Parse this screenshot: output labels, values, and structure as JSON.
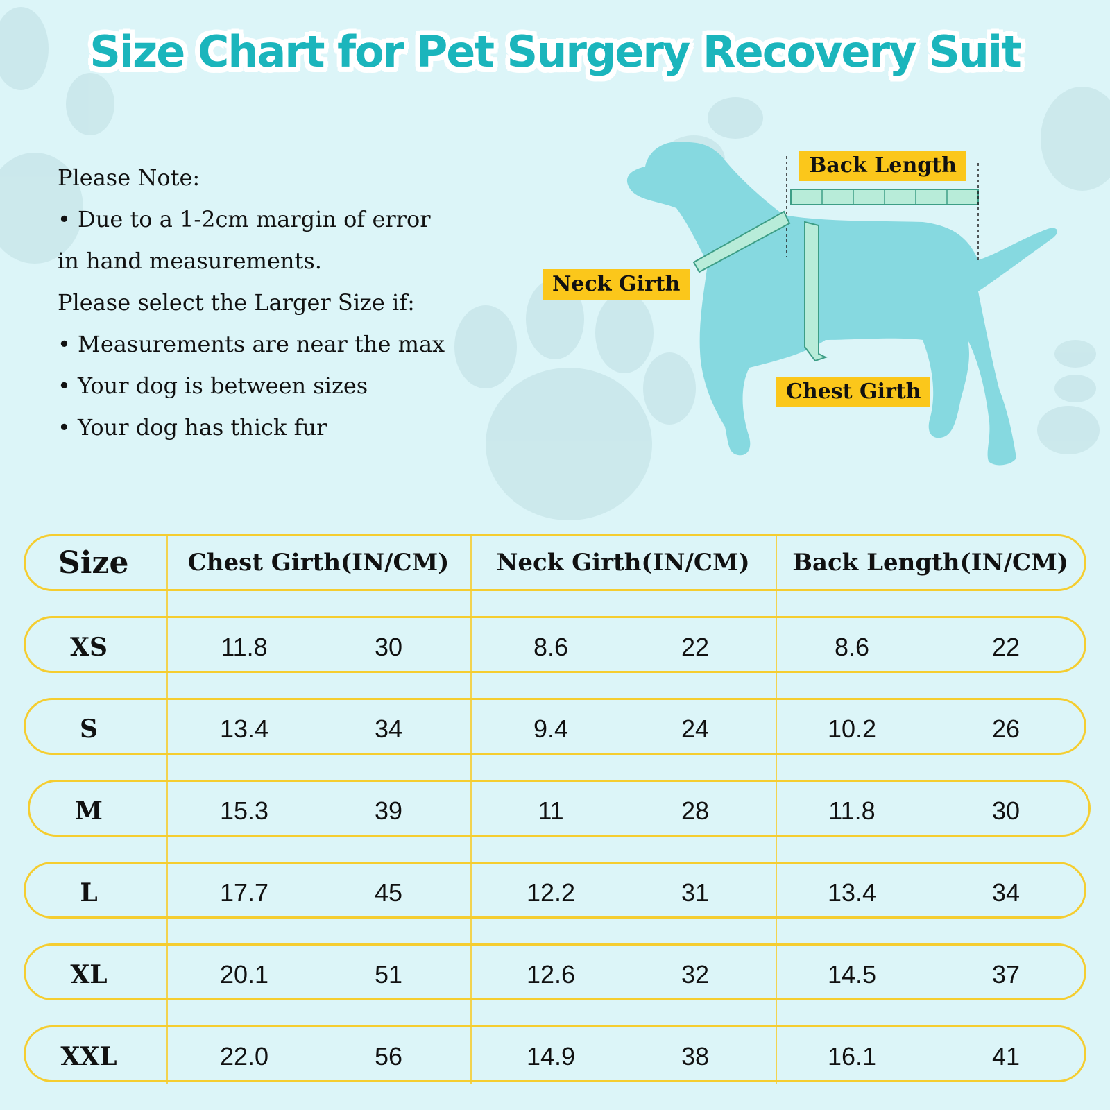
{
  "title": "Size Chart for Pet Surgery Recovery Suit",
  "notes": [
    "Please Note:",
    "• Due to a 1-2cm margin of error",
    "in hand measurements.",
    "Please select the Larger Size if:",
    "• Measurements are near the max",
    "• Your dog is between sizes",
    "• Your dog has thick fur"
  ],
  "diagram": {
    "back_length_label": "Back Length",
    "neck_girth_label": "Neck Girth",
    "chest_girth_label": "Chest Girth"
  },
  "colors": {
    "title": "#1bb5bc",
    "background": "#dcf5f8",
    "dog": "#86d9e0",
    "label_bg": "#fbc71b",
    "row_border": "#f5cd30"
  },
  "table": {
    "headers": [
      "Size",
      "Chest Girth(IN/CM)",
      "Neck Girth(IN/CM)",
      "Back Length(IN/CM)"
    ],
    "rows": [
      {
        "size": "XS",
        "chest_in": "11.8",
        "chest_cm": "30",
        "neck_in": "8.6",
        "neck_cm": "22",
        "back_in": "8.6",
        "back_cm": "22"
      },
      {
        "size": "S",
        "chest_in": "13.4",
        "chest_cm": "34",
        "neck_in": "9.4",
        "neck_cm": "24",
        "back_in": "10.2",
        "back_cm": "26"
      },
      {
        "size": "M",
        "chest_in": "15.3",
        "chest_cm": "39",
        "neck_in": "11",
        "neck_cm": "28",
        "back_in": "11.8",
        "back_cm": "30"
      },
      {
        "size": "L",
        "chest_in": "17.7",
        "chest_cm": "45",
        "neck_in": "12.2",
        "neck_cm": "31",
        "back_in": "13.4",
        "back_cm": "34"
      },
      {
        "size": "XL",
        "chest_in": "20.1",
        "chest_cm": "51",
        "neck_in": "12.6",
        "neck_cm": "32",
        "back_in": "14.5",
        "back_cm": "37"
      },
      {
        "size": "XXL",
        "chest_in": "22.0",
        "chest_cm": "56",
        "neck_in": "14.9",
        "neck_cm": "38",
        "back_in": "16.1",
        "back_cm": "41"
      }
    ]
  }
}
